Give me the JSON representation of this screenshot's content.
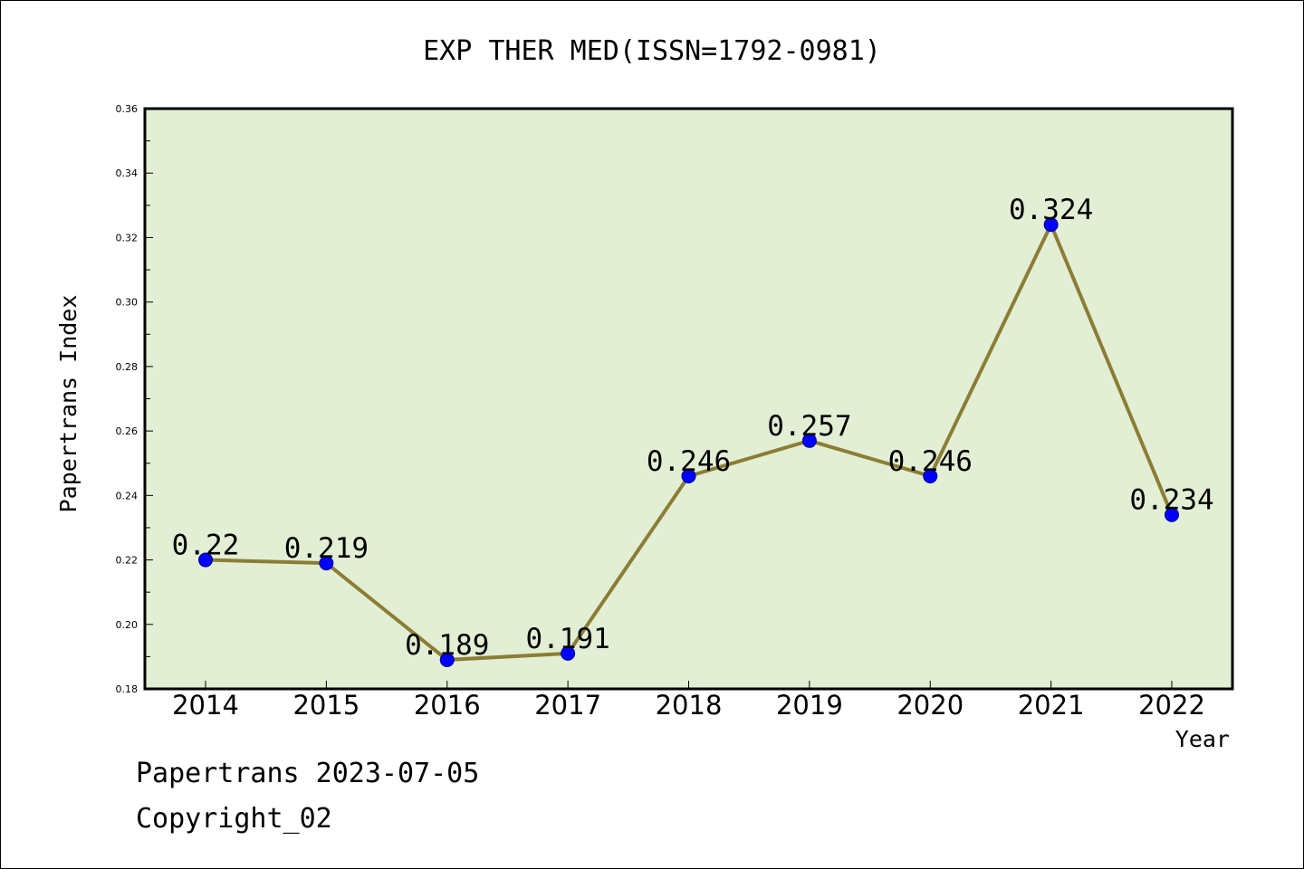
{
  "footer": {
    "line1": "Papertrans 2023-07-05",
    "line2": "Copyright_02"
  },
  "chart_data": {
    "type": "line",
    "title": "EXP THER MED(ISSN=1792-0981)",
    "xlabel": "Year",
    "ylabel": "Papertrans Index",
    "categories": [
      "2014",
      "2015",
      "2016",
      "2017",
      "2018",
      "2019",
      "2020",
      "2021",
      "2022"
    ],
    "values": [
      0.22,
      0.219,
      0.189,
      0.191,
      0.246,
      0.257,
      0.246,
      0.324,
      0.234
    ],
    "data_labels": [
      "0.22",
      "0.219",
      "0.189",
      "0.191",
      "0.246",
      "0.257",
      "0.246",
      "0.324",
      "0.234"
    ],
    "ylim": [
      0.18,
      0.36
    ],
    "yticks": [
      "0.18",
      "0.20",
      "0.22",
      "0.24",
      "0.26",
      "0.28",
      "0.30",
      "0.32",
      "0.34",
      "0.36"
    ],
    "grid": false,
    "legend": "none",
    "colors": {
      "plot_background": "#e2efd4",
      "line": "#8c7d35",
      "marker": "#0000ff"
    }
  }
}
